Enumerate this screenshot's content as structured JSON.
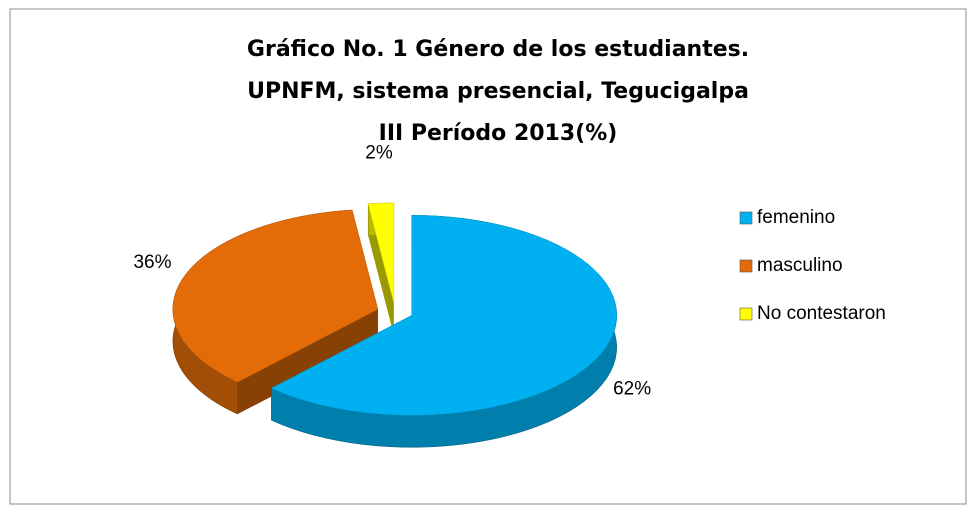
{
  "chart_data": {
    "type": "pie3d",
    "title": [
      "Gráfico No. 1 Género de los estudiantes.",
      "UPNFM, sistema presencial, Tegucigalpa",
      "III Período 2013(%)"
    ],
    "categories": [
      "femenino",
      "masculino",
      "No contestaron"
    ],
    "values": [
      62,
      36,
      2
    ],
    "value_labels": [
      "62%",
      "36%",
      "2%"
    ],
    "colors": [
      "#00b0f0",
      "#e36c09",
      "#ffff00"
    ],
    "legend": "right"
  }
}
